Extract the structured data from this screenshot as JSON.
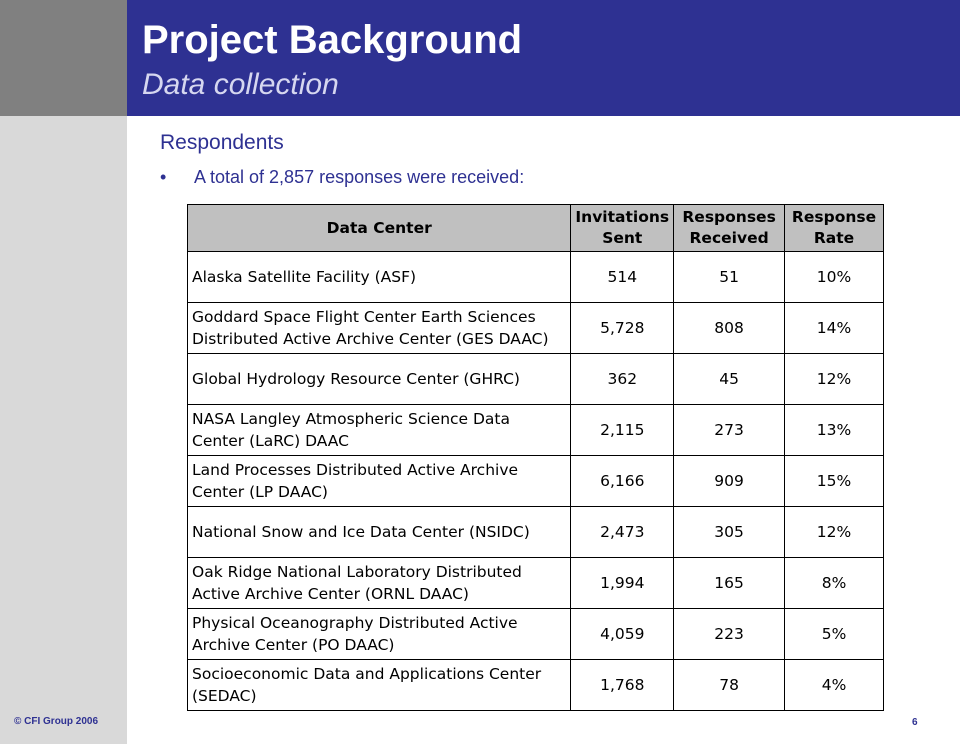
{
  "header": {
    "title": "Project Background",
    "subtitle": "Data collection"
  },
  "content": {
    "section_heading": "Respondents",
    "bullet_marker": "•",
    "bullet_text": "A total of 2,857 responses were received:"
  },
  "table": {
    "headers": {
      "data_center": "Data Center",
      "invitations": [
        "Invitations",
        "Sent"
      ],
      "responses": [
        "Responses",
        "Received"
      ],
      "rate": [
        "Response",
        "Rate"
      ]
    },
    "rows": [
      {
        "center": [
          "Alaska Satellite Facility (ASF)"
        ],
        "invitations": "514",
        "responses": "51",
        "rate": "10%"
      },
      {
        "center": [
          "Goddard Space Flight Center Earth Sciences",
          "Distributed Active Archive Center (GES DAAC)"
        ],
        "invitations": "5,728",
        "responses": "808",
        "rate": "14%"
      },
      {
        "center": [
          "Global Hydrology Resource Center (GHRC)"
        ],
        "invitations": "362",
        "responses": "45",
        "rate": "12%"
      },
      {
        "center": [
          "NASA Langley Atmospheric Science Data",
          "Center (LaRC) DAAC"
        ],
        "invitations": "2,115",
        "responses": "273",
        "rate": "13%"
      },
      {
        "center": [
          "Land Processes Distributed Active Archive",
          "Center (LP DAAC)"
        ],
        "invitations": "6,166",
        "responses": "909",
        "rate": "15%"
      },
      {
        "center": [
          "National Snow and Ice Data Center (NSIDC)"
        ],
        "invitations": "2,473",
        "responses": "305",
        "rate": "12%"
      },
      {
        "center": [
          "Oak Ridge National Laboratory Distributed",
          "Active Archive Center (ORNL DAAC)"
        ],
        "invitations": "1,994",
        "responses": "165",
        "rate": "8%"
      },
      {
        "center": [
          "Physical Oceanography Distributed Active",
          "Archive Center (PO DAAC)"
        ],
        "invitations": "4,059",
        "responses": "223",
        "rate": "5%"
      },
      {
        "center": [
          "Socioeconomic Data and Applications Center",
          "(SEDAC)"
        ],
        "invitations": "1,768",
        "responses": "78",
        "rate": "4%"
      }
    ]
  },
  "footer": {
    "copyright": "© CFI Group 2006",
    "page_number": "6"
  }
}
